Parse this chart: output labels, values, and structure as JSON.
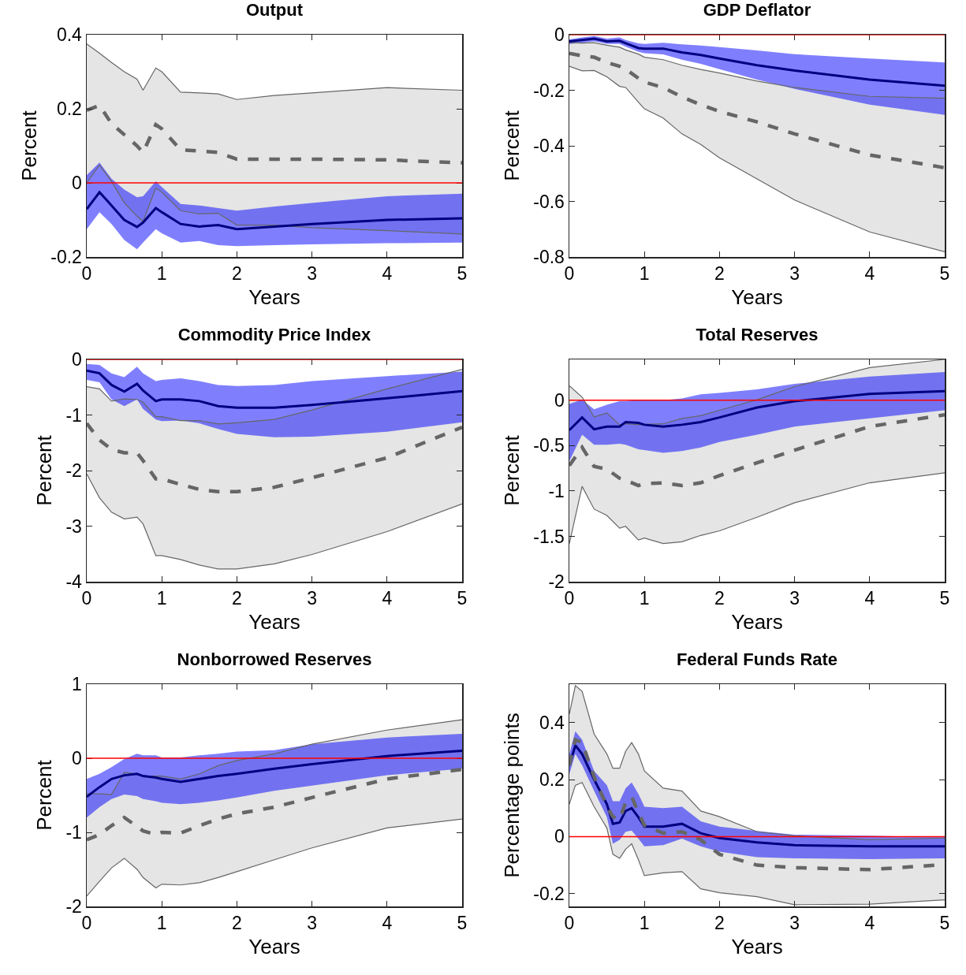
{
  "chart_data": [
    {
      "type": "line",
      "title": "Output",
      "xlabel": "Years",
      "ylabel": "Percent",
      "x": [
        0,
        0.17,
        0.33,
        0.5,
        0.67,
        0.75,
        0.92,
        1,
        1.25,
        1.5,
        1.75,
        2,
        2.5,
        3,
        4,
        5
      ],
      "xlim": [
        0,
        5
      ],
      "xticks": [
        0,
        1,
        2,
        3,
        4,
        5
      ],
      "ylim": [
        -0.2,
        0.4
      ],
      "yticks": [
        -0.2,
        0,
        0.2,
        0.4
      ],
      "marker": "none",
      "series": [
        {
          "color": "#666666",
          "line_style": "dashed",
          "values": [
            0.196,
            0.209,
            0.16,
            0.13,
            0.1,
            0.082,
            0.157,
            0.146,
            0.089,
            0.086,
            0.082,
            0.064,
            0.064,
            0.064,
            0.062,
            0.054
          ],
          "lower": [
            0.0,
            0.048,
            0.004,
            -0.054,
            -0.09,
            -0.104,
            -0.014,
            -0.025,
            -0.075,
            -0.084,
            -0.082,
            -0.114,
            -0.114,
            -0.121,
            -0.129,
            -0.138
          ],
          "upper": [
            0.375,
            0.35,
            0.325,
            0.3,
            0.28,
            0.25,
            0.31,
            0.3,
            0.245,
            0.243,
            0.24,
            0.225,
            0.236,
            0.243,
            0.257,
            0.25
          ]
        },
        {
          "color": "#00007f",
          "line_style": "solid",
          "values": [
            -0.071,
            -0.025,
            -0.061,
            -0.1,
            -0.119,
            -0.107,
            -0.068,
            -0.079,
            -0.111,
            -0.118,
            -0.114,
            -0.125,
            -0.118,
            -0.111,
            -0.1,
            -0.096
          ],
          "lower": [
            -0.125,
            -0.079,
            -0.111,
            -0.154,
            -0.179,
            -0.161,
            -0.125,
            -0.136,
            -0.161,
            -0.157,
            -0.168,
            -0.171,
            -0.168,
            -0.166,
            -0.163,
            -0.161
          ],
          "upper": [
            0.021,
            0.055,
            0.011,
            -0.018,
            -0.039,
            -0.036,
            0.004,
            -0.011,
            -0.057,
            -0.061,
            -0.068,
            -0.075,
            -0.064,
            -0.054,
            -0.036,
            -0.029
          ]
        },
        {
          "color": "#666666",
          "line_style": "solid",
          "values": [
            0.0,
            0.048,
            0.004,
            -0.054,
            -0.09,
            -0.104,
            -0.014,
            -0.025,
            -0.075,
            -0.084,
            -0.082,
            -0.114,
            -0.114,
            -0.121,
            -0.129,
            -0.138
          ]
        },
        {
          "color": "#666666",
          "line_style": "solid",
          "values": [
            0.375,
            0.35,
            0.325,
            0.3,
            0.28,
            0.25,
            0.31,
            0.3,
            0.245,
            0.243,
            0.24,
            0.225,
            0.236,
            0.243,
            0.257,
            0.25
          ]
        }
      ],
      "ref_lines": [
        {
          "axis": "y",
          "value": 0,
          "color": "#ff0000"
        }
      ]
    },
    {
      "type": "line",
      "title": "GDP Deflator",
      "xlabel": "Years",
      "ylabel": "Percent",
      "x": [
        0,
        0.17,
        0.33,
        0.5,
        0.67,
        0.75,
        0.92,
        1,
        1.25,
        1.5,
        1.75,
        2,
        2.5,
        3,
        4,
        5
      ],
      "xlim": [
        0,
        5
      ],
      "xticks": [
        0,
        1,
        2,
        3,
        4,
        5
      ],
      "ylim": [
        -0.8,
        0
      ],
      "yticks": [
        -0.8,
        -0.6,
        -0.4,
        -0.2,
        0
      ],
      "marker": "none",
      "series": [
        {
          "color": "#666666",
          "line_style": "dashed",
          "values": [
            -0.067,
            -0.076,
            -0.081,
            -0.1,
            -0.114,
            -0.124,
            -0.157,
            -0.171,
            -0.19,
            -0.224,
            -0.252,
            -0.276,
            -0.314,
            -0.357,
            -0.433,
            -0.479
          ],
          "lower": [
            -0.114,
            -0.13,
            -0.129,
            -0.152,
            -0.186,
            -0.19,
            -0.243,
            -0.267,
            -0.3,
            -0.357,
            -0.395,
            -0.443,
            -0.519,
            -0.595,
            -0.71,
            -0.781
          ],
          "upper": [
            -0.029,
            -0.03,
            -0.029,
            -0.038,
            -0.045,
            -0.055,
            -0.07,
            -0.081,
            -0.09,
            -0.11,
            -0.125,
            -0.138,
            -0.167,
            -0.19,
            -0.222,
            -0.229
          ]
        },
        {
          "color": "#00007f",
          "line_style": "solid",
          "values": [
            -0.024,
            -0.019,
            -0.014,
            -0.024,
            -0.022,
            -0.031,
            -0.048,
            -0.05,
            -0.05,
            -0.064,
            -0.073,
            -0.086,
            -0.11,
            -0.129,
            -0.162,
            -0.184
          ],
          "lower": [
            -0.033,
            -0.029,
            -0.024,
            -0.033,
            -0.033,
            -0.043,
            -0.062,
            -0.067,
            -0.071,
            -0.09,
            -0.105,
            -0.124,
            -0.162,
            -0.195,
            -0.252,
            -0.289
          ],
          "upper": [
            -0.017,
            -0.01,
            -0.005,
            -0.014,
            -0.01,
            -0.019,
            -0.031,
            -0.033,
            -0.029,
            -0.035,
            -0.039,
            -0.045,
            -0.057,
            -0.07,
            -0.086,
            -0.1
          ]
        },
        {
          "color": "#666666",
          "line_style": "solid",
          "values": [
            -0.114,
            -0.13,
            -0.129,
            -0.152,
            -0.186,
            -0.19,
            -0.243,
            -0.267,
            -0.3,
            -0.357,
            -0.395,
            -0.443,
            -0.519,
            -0.595,
            -0.71,
            -0.781
          ]
        },
        {
          "color": "#666666",
          "line_style": "solid",
          "values": [
            -0.029,
            -0.03,
            -0.029,
            -0.038,
            -0.045,
            -0.055,
            -0.07,
            -0.081,
            -0.09,
            -0.11,
            -0.125,
            -0.138,
            -0.167,
            -0.19,
            -0.222,
            -0.229
          ]
        }
      ],
      "ref_lines": [
        {
          "axis": "y",
          "value": 0,
          "color": "#ff0000"
        }
      ]
    },
    {
      "type": "line",
      "title": "Commodity Price Index",
      "xlabel": "Years",
      "ylabel": "Percent",
      "x": [
        0,
        0.17,
        0.33,
        0.5,
        0.67,
        0.75,
        0.92,
        1,
        1.25,
        1.5,
        1.75,
        2,
        2.5,
        3,
        4,
        5
      ],
      "xlim": [
        0,
        5
      ],
      "xticks": [
        0,
        1,
        2,
        3,
        4,
        5
      ],
      "ylim": [
        -4,
        0
      ],
      "yticks": [
        -4,
        -3,
        -2,
        -1,
        0
      ],
      "marker": "none",
      "series": [
        {
          "color": "#666666",
          "line_style": "dashed",
          "values": [
            -1.15,
            -1.45,
            -1.62,
            -1.68,
            -1.68,
            -1.82,
            -2.15,
            -2.15,
            -2.25,
            -2.34,
            -2.38,
            -2.38,
            -2.3,
            -2.13,
            -1.77,
            -1.22
          ],
          "lower": [
            -2.06,
            -2.49,
            -2.75,
            -2.87,
            -2.84,
            -2.96,
            -3.53,
            -3.53,
            -3.6,
            -3.7,
            -3.77,
            -3.77,
            -3.68,
            -3.51,
            -3.1,
            -2.6
          ],
          "upper": [
            -0.49,
            -0.53,
            -0.75,
            -0.71,
            -0.72,
            -0.77,
            -1.03,
            -1.03,
            -1.1,
            -1.1,
            -1.16,
            -1.14,
            -1.08,
            -0.91,
            -0.53,
            -0.18
          ]
        },
        {
          "color": "#00007f",
          "line_style": "solid",
          "values": [
            -0.2,
            -0.25,
            -0.46,
            -0.58,
            -0.44,
            -0.56,
            -0.75,
            -0.72,
            -0.72,
            -0.75,
            -0.84,
            -0.87,
            -0.87,
            -0.82,
            -0.7,
            -0.57
          ],
          "lower": [
            -0.37,
            -0.41,
            -0.72,
            -0.84,
            -0.72,
            -0.89,
            -1.08,
            -1.11,
            -1.1,
            -1.15,
            -1.25,
            -1.34,
            -1.4,
            -1.39,
            -1.3,
            -1.13
          ],
          "upper": [
            -0.08,
            -0.1,
            -0.25,
            -0.32,
            -0.13,
            -0.25,
            -0.39,
            -0.37,
            -0.34,
            -0.39,
            -0.46,
            -0.48,
            -0.46,
            -0.39,
            -0.3,
            -0.22
          ]
        },
        {
          "color": "#666666",
          "line_style": "solid",
          "values": [
            -2.06,
            -2.49,
            -2.75,
            -2.87,
            -2.84,
            -2.96,
            -3.53,
            -3.53,
            -3.6,
            -3.7,
            -3.77,
            -3.77,
            -3.68,
            -3.51,
            -3.1,
            -2.6
          ]
        },
        {
          "color": "#666666",
          "line_style": "solid",
          "values": [
            -0.49,
            -0.53,
            -0.75,
            -0.71,
            -0.72,
            -0.77,
            -1.03,
            -1.03,
            -1.1,
            -1.1,
            -1.16,
            -1.14,
            -1.08,
            -0.91,
            -0.53,
            -0.18
          ]
        }
      ],
      "ref_lines": [
        {
          "axis": "y",
          "value": 0,
          "color": "#ff0000"
        }
      ]
    },
    {
      "type": "line",
      "title": "Total Reserves",
      "xlabel": "Years",
      "ylabel": "Percent",
      "x": [
        0,
        0.17,
        0.33,
        0.5,
        0.67,
        0.75,
        0.92,
        1,
        1.25,
        1.5,
        1.75,
        2,
        2.5,
        3,
        4,
        5
      ],
      "xlim": [
        0,
        5
      ],
      "xticks": [
        0,
        1,
        2,
        3,
        4,
        5
      ],
      "ylim": [
        -2,
        0.45
      ],
      "yticks": [
        -2,
        -1.5,
        -1,
        -0.5,
        0
      ],
      "marker": "none",
      "series": [
        {
          "color": "#666666",
          "line_style": "dashed",
          "values": [
            -0.72,
            -0.52,
            -0.73,
            -0.76,
            -0.86,
            -0.88,
            -0.94,
            -0.92,
            -0.91,
            -0.94,
            -0.91,
            -0.83,
            -0.69,
            -0.55,
            -0.29,
            -0.16
          ],
          "lower": [
            -1.58,
            -0.95,
            -1.2,
            -1.27,
            -1.41,
            -1.39,
            -1.54,
            -1.52,
            -1.58,
            -1.56,
            -1.49,
            -1.44,
            -1.29,
            -1.13,
            -0.91,
            -0.8
          ],
          "upper": [
            0.16,
            0.035,
            -0.185,
            -0.14,
            -0.27,
            -0.26,
            -0.27,
            -0.265,
            -0.26,
            -0.2,
            -0.17,
            -0.11,
            0.006,
            0.15,
            0.36,
            0.45
          ]
        },
        {
          "color": "#00007f",
          "line_style": "solid",
          "values": [
            -0.33,
            -0.19,
            -0.32,
            -0.29,
            -0.29,
            -0.24,
            -0.25,
            -0.27,
            -0.29,
            -0.27,
            -0.24,
            -0.19,
            -0.08,
            -0.01,
            0.07,
            0.1
          ],
          "lower": [
            -0.67,
            -0.38,
            -0.49,
            -0.49,
            -0.48,
            -0.49,
            -0.54,
            -0.55,
            -0.58,
            -0.56,
            -0.52,
            -0.46,
            -0.38,
            -0.29,
            -0.2,
            -0.11
          ],
          "upper": [
            -0.04,
            0.006,
            -0.1,
            -0.05,
            -0.01,
            -0.01,
            0.006,
            0.006,
            0,
            0.02,
            0.065,
            0.08,
            0.12,
            0.18,
            0.26,
            0.31
          ]
        },
        {
          "color": "#666666",
          "line_style": "solid",
          "values": [
            -1.58,
            -0.95,
            -1.2,
            -1.27,
            -1.41,
            -1.39,
            -1.54,
            -1.52,
            -1.58,
            -1.56,
            -1.49,
            -1.44,
            -1.29,
            -1.13,
            -0.91,
            -0.8
          ]
        },
        {
          "color": "#666666",
          "line_style": "solid",
          "values": [
            0.16,
            0.035,
            -0.185,
            -0.14,
            -0.27,
            -0.26,
            -0.27,
            -0.265,
            -0.26,
            -0.2,
            -0.17,
            -0.11,
            0.006,
            0.15,
            0.36,
            0.45
          ]
        }
      ],
      "ref_lines": [
        {
          "axis": "y",
          "value": 0,
          "color": "#ff0000"
        }
      ]
    },
    {
      "type": "line",
      "title": "Nonborrowed Reserves",
      "xlabel": "Years",
      "ylabel": "Percent",
      "x": [
        0,
        0.17,
        0.33,
        0.5,
        0.67,
        0.75,
        0.92,
        1,
        1.25,
        1.5,
        1.75,
        2,
        2.5,
        3,
        4,
        5
      ],
      "xlim": [
        0,
        5
      ],
      "xticks": [
        0,
        1,
        2,
        3,
        4,
        5
      ],
      "ylim": [
        -2,
        1
      ],
      "yticks": [
        -2,
        -1,
        0,
        1
      ],
      "marker": "none",
      "series": [
        {
          "color": "#666666",
          "line_style": "dashed",
          "values": [
            -1.1,
            -1.03,
            -0.91,
            -0.8,
            -0.92,
            -0.98,
            -1.03,
            -1.0,
            -1.01,
            -0.91,
            -0.82,
            -0.75,
            -0.66,
            -0.53,
            -0.28,
            -0.15
          ],
          "lower": [
            -1.86,
            -1.66,
            -1.48,
            -1.35,
            -1.5,
            -1.61,
            -1.75,
            -1.7,
            -1.71,
            -1.68,
            -1.61,
            -1.53,
            -1.37,
            -1.21,
            -0.94,
            -0.82
          ],
          "upper": [
            -0.48,
            -0.48,
            -0.49,
            -0.19,
            -0.21,
            -0.24,
            -0.24,
            -0.24,
            -0.28,
            -0.21,
            -0.1,
            -0.03,
            0.06,
            0.19,
            0.38,
            0.52
          ]
        },
        {
          "color": "#00007f",
          "line_style": "solid",
          "values": [
            -0.52,
            -0.39,
            -0.28,
            -0.23,
            -0.21,
            -0.24,
            -0.26,
            -0.28,
            -0.32,
            -0.28,
            -0.24,
            -0.21,
            -0.14,
            -0.08,
            0.03,
            0.1
          ],
          "lower": [
            -0.8,
            -0.66,
            -0.55,
            -0.49,
            -0.51,
            -0.55,
            -0.58,
            -0.6,
            -0.62,
            -0.6,
            -0.57,
            -0.53,
            -0.44,
            -0.37,
            -0.23,
            -0.14
          ],
          "upper": [
            -0.28,
            -0.21,
            -0.12,
            -0.01,
            0.06,
            0.04,
            0.04,
            0.01,
            0.01,
            0.04,
            0.06,
            0.09,
            0.11,
            0.19,
            0.28,
            0.33
          ]
        },
        {
          "color": "#666666",
          "line_style": "solid",
          "values": [
            -1.86,
            -1.66,
            -1.48,
            -1.35,
            -1.5,
            -1.61,
            -1.75,
            -1.7,
            -1.71,
            -1.68,
            -1.61,
            -1.53,
            -1.37,
            -1.21,
            -0.94,
            -0.82
          ]
        },
        {
          "color": "#666666",
          "line_style": "solid",
          "values": [
            -0.48,
            -0.48,
            -0.49,
            -0.19,
            -0.21,
            -0.24,
            -0.24,
            -0.24,
            -0.28,
            -0.21,
            -0.1,
            -0.03,
            0.06,
            0.19,
            0.38,
            0.52
          ]
        }
      ],
      "ref_lines": [
        {
          "axis": "y",
          "value": 0,
          "color": "#ff0000"
        }
      ]
    },
    {
      "type": "line",
      "title": "Federal Funds Rate",
      "xlabel": "Years",
      "ylabel": "Percentage points",
      "x": [
        0,
        0.08,
        0.17,
        0.33,
        0.5,
        0.58,
        0.67,
        0.75,
        0.83,
        0.92,
        1,
        1.25,
        1.5,
        1.75,
        2,
        2.5,
        3,
        4,
        5
      ],
      "xlim": [
        0,
        5
      ],
      "xticks": [
        0,
        1,
        2,
        3,
        4,
        5
      ],
      "ylim": [
        -0.245,
        0.535
      ],
      "yticks": [
        -0.2,
        0,
        0.2,
        0.4
      ],
      "marker": "none",
      "series": [
        {
          "color": "#666666",
          "line_style": "dashed",
          "values": [
            0.25,
            0.34,
            0.33,
            0.21,
            0.105,
            0.07,
            0.06,
            0.12,
            0.14,
            0.085,
            0.04,
            0.012,
            0.017,
            -0.011,
            -0.062,
            -0.1,
            -0.109,
            -0.116,
            -0.098
          ],
          "lower": [
            0.114,
            0.18,
            0.19,
            0.105,
            0.03,
            -0.062,
            -0.076,
            -0.044,
            -0.025,
            -0.081,
            -0.137,
            -0.127,
            -0.123,
            -0.183,
            -0.197,
            -0.211,
            -0.239,
            -0.237,
            -0.222
          ],
          "upper": [
            0.43,
            0.53,
            0.51,
            0.36,
            0.29,
            0.24,
            0.24,
            0.3,
            0.33,
            0.29,
            0.23,
            0.17,
            0.16,
            0.09,
            0.07,
            0.017,
            0.003,
            -0.011,
            -0.005
          ]
        },
        {
          "color": "#00007f",
          "line_style": "solid",
          "values": [
            0.25,
            0.32,
            0.29,
            0.2,
            0.114,
            0.045,
            0.05,
            0.09,
            0.1,
            0.068,
            0.035,
            0.035,
            0.045,
            0.012,
            -0.005,
            -0.02,
            -0.03,
            -0.034,
            -0.034
          ],
          "lower": [
            0.22,
            0.29,
            0.25,
            0.16,
            0.068,
            -0.025,
            -0.011,
            0.017,
            0.021,
            -0.007,
            -0.034,
            -0.03,
            -0.007,
            -0.034,
            -0.053,
            -0.072,
            -0.076,
            -0.079,
            -0.076
          ],
          "upper": [
            0.29,
            0.37,
            0.34,
            0.23,
            0.18,
            0.124,
            0.124,
            0.17,
            0.19,
            0.15,
            0.105,
            0.1,
            0.105,
            0.054,
            0.035,
            0.02,
            0.007,
            0.003,
            -0.002
          ]
        },
        {
          "color": "#666666",
          "line_style": "solid",
          "values": [
            0.114,
            0.18,
            0.19,
            0.105,
            0.03,
            -0.062,
            -0.076,
            -0.044,
            -0.025,
            -0.081,
            -0.137,
            -0.127,
            -0.123,
            -0.183,
            -0.197,
            -0.211,
            -0.239,
            -0.237,
            -0.222
          ]
        },
        {
          "color": "#666666",
          "line_style": "solid",
          "values": [
            0.43,
            0.53,
            0.51,
            0.36,
            0.29,
            0.24,
            0.24,
            0.3,
            0.33,
            0.29,
            0.23,
            0.17,
            0.16,
            0.09,
            0.07,
            0.017,
            0.003,
            -0.011,
            -0.005
          ]
        }
      ],
      "ref_lines": [
        {
          "axis": "y",
          "value": 0,
          "color": "#ff0000"
        }
      ]
    }
  ]
}
